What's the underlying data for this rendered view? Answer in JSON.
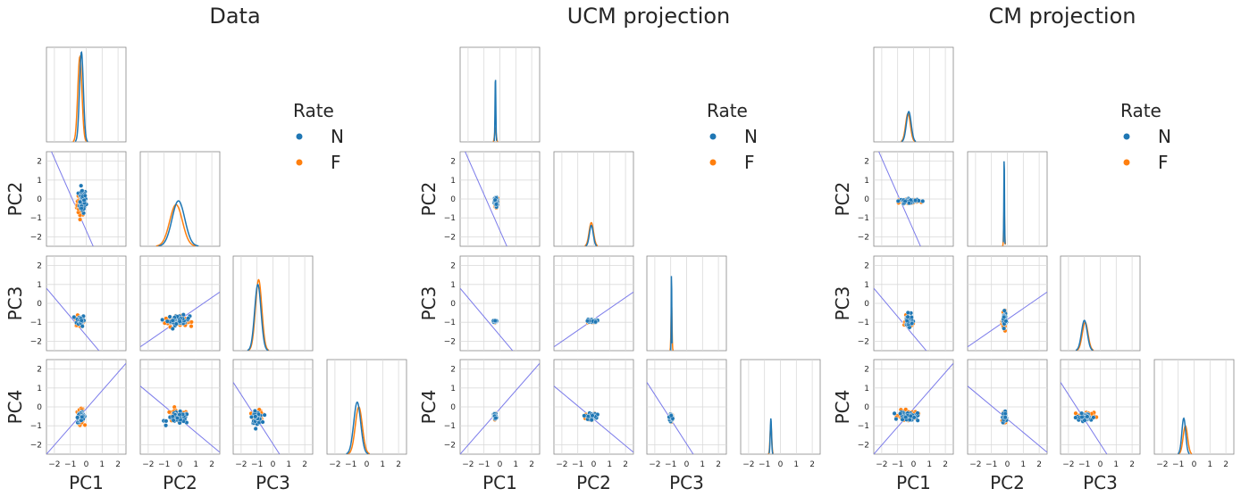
{
  "chart_data": {
    "type": "scatter",
    "panels": [
      {
        "title": "Data",
        "diag": [
          {
            "N": {
              "mu": -0.3,
              "sigma": 0.12,
              "peak": 0.95
            },
            "F": {
              "mu": -0.4,
              "sigma": 0.13,
              "peak": 0.9
            }
          },
          {
            "N": {
              "mu": -0.1,
              "sigma": 0.4,
              "peak": 0.48
            },
            "F": {
              "mu": -0.25,
              "sigma": 0.4,
              "peak": 0.44
            }
          },
          {
            "N": {
              "mu": -0.95,
              "sigma": 0.2,
              "peak": 0.7
            },
            "F": {
              "mu": -0.9,
              "sigma": 0.2,
              "peak": 0.75
            }
          },
          {
            "N": {
              "mu": -0.6,
              "sigma": 0.22,
              "peak": 0.55
            },
            "F": {
              "mu": -0.5,
              "sigma": 0.22,
              "peak": 0.5
            }
          }
        ],
        "scatter": [
          {
            "row": 1,
            "col": 0,
            "N": {
              "cx": -0.25,
              "cy": -0.1,
              "sx": 0.12,
              "sy": 0.32
            },
            "F": {
              "cx": -0.35,
              "cy": -0.3,
              "sx": 0.12,
              "sy": 0.3
            }
          },
          {
            "row": 2,
            "col": 0,
            "N": {
              "cx": -0.35,
              "cy": -0.9,
              "sx": 0.12,
              "sy": 0.15
            },
            "F": {
              "cx": -0.4,
              "cy": -0.95,
              "sx": 0.12,
              "sy": 0.15
            }
          },
          {
            "row": 2,
            "col": 1,
            "N": {
              "cx": -0.1,
              "cy": -0.9,
              "sx": 0.35,
              "sy": 0.13
            },
            "F": {
              "cx": -0.25,
              "cy": -0.95,
              "sx": 0.35,
              "sy": 0.13
            }
          },
          {
            "row": 3,
            "col": 0,
            "N": {
              "cx": -0.3,
              "cy": -0.55,
              "sx": 0.12,
              "sy": 0.15
            },
            "F": {
              "cx": -0.35,
              "cy": -0.5,
              "sx": 0.12,
              "sy": 0.18
            }
          },
          {
            "row": 3,
            "col": 1,
            "N": {
              "cx": -0.1,
              "cy": -0.6,
              "sx": 0.35,
              "sy": 0.15
            },
            "F": {
              "cx": -0.2,
              "cy": -0.5,
              "sx": 0.35,
              "sy": 0.15
            }
          },
          {
            "row": 3,
            "col": 2,
            "N": {
              "cx": -1.0,
              "cy": -0.55,
              "sx": 0.15,
              "sy": 0.15
            },
            "F": {
              "cx": -0.95,
              "cy": -0.5,
              "sx": 0.15,
              "sy": 0.15
            }
          }
        ]
      },
      {
        "title": "UCM projection",
        "diag": [
          {
            "N": {
              "mu": -0.28,
              "sigma": 0.025,
              "peak": 0.7
            },
            "F": {
              "mu": -0.28,
              "sigma": 0.05,
              "peak": 0.15
            }
          },
          {
            "N": {
              "mu": -0.15,
              "sigma": 0.12,
              "peak": 0.22
            },
            "F": {
              "mu": -0.15,
              "sigma": 0.14,
              "peak": 0.25
            }
          },
          {
            "N": {
              "mu": -0.95,
              "sigma": 0.015,
              "peak": 0.92
            },
            "F": {
              "mu": -0.95,
              "sigma": 0.03,
              "peak": 0.5
            }
          },
          {
            "N": {
              "mu": -0.6,
              "sigma": 0.04,
              "peak": 0.38
            },
            "F": {
              "mu": -0.6,
              "sigma": 0.05,
              "peak": 0.32
            }
          }
        ],
        "scatter": [
          {
            "row": 1,
            "col": 0,
            "N": {
              "cx": -0.25,
              "cy": -0.15,
              "sx": 0.05,
              "sy": 0.15
            },
            "F": {
              "cx": -0.25,
              "cy": -0.2,
              "sx": 0.05,
              "sy": 0.12
            }
          },
          {
            "row": 2,
            "col": 0,
            "N": {
              "cx": -0.3,
              "cy": -0.95,
              "sx": 0.04,
              "sy": 0.03
            },
            "F": {
              "cx": -0.3,
              "cy": -0.95,
              "sx": 0.04,
              "sy": 0.03
            }
          },
          {
            "row": 2,
            "col": 1,
            "N": {
              "cx": -0.1,
              "cy": -0.93,
              "sx": 0.15,
              "sy": 0.04
            },
            "F": {
              "cx": -0.15,
              "cy": -0.95,
              "sx": 0.15,
              "sy": 0.04
            }
          },
          {
            "row": 3,
            "col": 0,
            "N": {
              "cx": -0.3,
              "cy": -0.5,
              "sx": 0.04,
              "sy": 0.08
            },
            "F": {
              "cx": -0.3,
              "cy": -0.5,
              "sx": 0.04,
              "sy": 0.08
            }
          },
          {
            "row": 3,
            "col": 1,
            "N": {
              "cx": -0.15,
              "cy": -0.5,
              "sx": 0.15,
              "sy": 0.08
            },
            "F": {
              "cx": -0.2,
              "cy": -0.5,
              "sx": 0.15,
              "sy": 0.08
            }
          },
          {
            "row": 3,
            "col": 2,
            "N": {
              "cx": -0.95,
              "cy": -0.55,
              "sx": 0.04,
              "sy": 0.08
            },
            "F": {
              "cx": -0.95,
              "cy": -0.55,
              "sx": 0.04,
              "sy": 0.08
            }
          }
        ]
      },
      {
        "title": "CM projection",
        "diag": [
          {
            "N": {
              "mu": -0.3,
              "sigma": 0.15,
              "peak": 0.32
            },
            "F": {
              "mu": -0.35,
              "sigma": 0.15,
              "peak": 0.3
            }
          },
          {
            "N": {
              "mu": -0.2,
              "sigma": 0.02,
              "peak": 0.98
            },
            "F": {
              "mu": -0.2,
              "sigma": 0.03,
              "peak": 0.4
            }
          },
          {
            "N": {
              "mu": -1.0,
              "sigma": 0.18,
              "peak": 0.32
            },
            "F": {
              "mu": -0.95,
              "sigma": 0.18,
              "peak": 0.3
            }
          },
          {
            "N": {
              "mu": -0.65,
              "sigma": 0.12,
              "peak": 0.38
            },
            "F": {
              "mu": -0.55,
              "sigma": 0.14,
              "peak": 0.3
            }
          }
        ],
        "scatter": [
          {
            "row": 1,
            "col": 0,
            "N": {
              "cx": -0.25,
              "cy": -0.1,
              "sx": 0.3,
              "sy": 0.05
            },
            "F": {
              "cx": -0.3,
              "cy": -0.12,
              "sx": 0.3,
              "sy": 0.05
            }
          },
          {
            "row": 2,
            "col": 0,
            "N": {
              "cx": -0.3,
              "cy": -0.9,
              "sx": 0.12,
              "sy": 0.15
            },
            "F": {
              "cx": -0.35,
              "cy": -0.95,
              "sx": 0.12,
              "sy": 0.15
            }
          },
          {
            "row": 2,
            "col": 1,
            "N": {
              "cx": -0.2,
              "cy": -0.9,
              "sx": 0.05,
              "sy": 0.2
            },
            "F": {
              "cx": -0.2,
              "cy": -0.95,
              "sx": 0.05,
              "sy": 0.2
            }
          },
          {
            "row": 3,
            "col": 0,
            "N": {
              "cx": -0.3,
              "cy": -0.5,
              "sx": 0.3,
              "sy": 0.12
            },
            "F": {
              "cx": -0.35,
              "cy": -0.45,
              "sx": 0.3,
              "sy": 0.12
            }
          },
          {
            "row": 3,
            "col": 1,
            "N": {
              "cx": -0.2,
              "cy": -0.55,
              "sx": 0.05,
              "sy": 0.15
            },
            "F": {
              "cx": -0.2,
              "cy": -0.5,
              "sx": 0.05,
              "sy": 0.15
            }
          },
          {
            "row": 3,
            "col": 2,
            "N": {
              "cx": -0.95,
              "cy": -0.55,
              "sx": 0.25,
              "sy": 0.1
            },
            "F": {
              "cx": -0.9,
              "cy": -0.5,
              "sx": 0.25,
              "sy": 0.1
            }
          }
        ]
      }
    ],
    "reference_lines": [
      {
        "row": 1,
        "col": 0,
        "points": [
          [
            -2.5,
            3.1
          ],
          [
            0.7,
            -3.0
          ]
        ]
      },
      {
        "row": 2,
        "col": 0,
        "points": [
          [
            -2.5,
            0.8
          ],
          [
            2.5,
            -4.2
          ]
        ]
      },
      {
        "row": 2,
        "col": 1,
        "points": [
          [
            -2.5,
            -2.3
          ],
          [
            2.5,
            0.6
          ]
        ]
      },
      {
        "row": 3,
        "col": 0,
        "points": [
          [
            -2.5,
            -2.5
          ],
          [
            2.5,
            2.3
          ]
        ]
      },
      {
        "row": 3,
        "col": 1,
        "points": [
          [
            -2.5,
            1.1
          ],
          [
            2.5,
            -2.4
          ]
        ]
      },
      {
        "row": 3,
        "col": 2,
        "points": [
          [
            -2.5,
            1.3
          ],
          [
            0.8,
            -3.0
          ]
        ]
      }
    ],
    "axis_labels_x": [
      "PC1",
      "PC2",
      "PC3"
    ],
    "axis_labels_y": [
      "PC2",
      "PC3",
      "PC4"
    ],
    "xticks": [
      "−2",
      "−1",
      "0",
      "1",
      "2"
    ],
    "yticks": [
      "2",
      "1",
      "0",
      "−1",
      "−2"
    ],
    "tick_values": [
      -2,
      -1,
      0,
      1,
      2
    ],
    "xlim": [
      -2.5,
      2.5
    ],
    "ylim": [
      -2.5,
      2.5
    ],
    "grid": true,
    "legend": {
      "title": "Rate",
      "placement": "right",
      "entries": [
        {
          "label": "N",
          "color": "#1f77b4"
        },
        {
          "label": "F",
          "color": "#ff7f0e"
        }
      ]
    },
    "line_color": "#7b7bea"
  }
}
